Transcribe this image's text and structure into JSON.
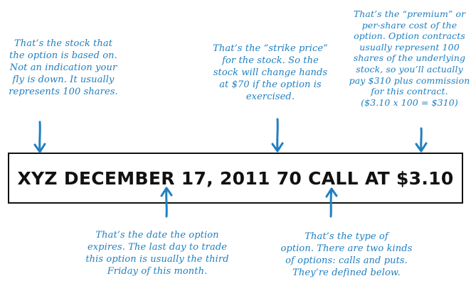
{
  "option_example": "XYZ DECEMBER 17, 2011 70 CALL AT $3.10",
  "annotations": {
    "stock": [
      "That’s the stock that",
      "the option is based on.",
      "Not an indication your",
      "fly is down. It usually",
      "represents 100 shares."
    ],
    "strike": [
      "That’s the “strike price”",
      "for the stock. So the",
      "stock will change hands",
      "at $70 if the option is",
      "exercised."
    ],
    "premium": [
      "That’s the “premium” or",
      "per-share cost of the",
      "option. Option contracts",
      "usually represent 100",
      "shares of the underlying",
      "stock, so you’ll actually",
      "pay $310 plus commission",
      "for this contract.",
      "($3.10 x 100 = $310)"
    ],
    "date": [
      "That’s the date the option",
      "expires. The last day to trade",
      "this option is usually the third",
      "Friday of this month."
    ],
    "type": [
      "That’s the type of",
      "option. There are two kinds",
      "of options: calls and puts.",
      "They’re defined below."
    ]
  },
  "colors": {
    "annotation": "#1f7fc0",
    "box_border": "#111111",
    "main_text": "#111111"
  }
}
